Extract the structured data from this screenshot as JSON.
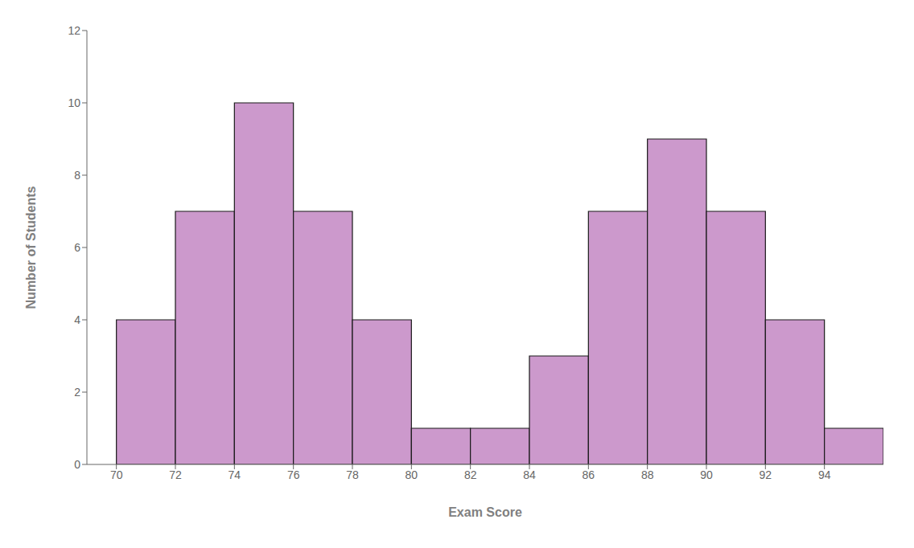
{
  "chart_data": {
    "type": "histogram",
    "xlabel": "Exam Score",
    "ylabel": "Number of Students",
    "bins": [
      70,
      72,
      74,
      76,
      78,
      80,
      82,
      84,
      86,
      88,
      90,
      92,
      94,
      96
    ],
    "values": [
      4,
      7,
      10,
      7,
      4,
      1,
      1,
      3,
      7,
      9,
      7,
      4,
      1
    ],
    "color": "#cc99cc",
    "xlim": [
      69,
      96
    ],
    "xticks": [
      70,
      72,
      74,
      76,
      78,
      80,
      82,
      84,
      86,
      88,
      90,
      92,
      94
    ],
    "ylim": [
      0,
      12
    ],
    "yticks": [
      0,
      2,
      4,
      6,
      8,
      10,
      12
    ],
    "grid": false
  }
}
